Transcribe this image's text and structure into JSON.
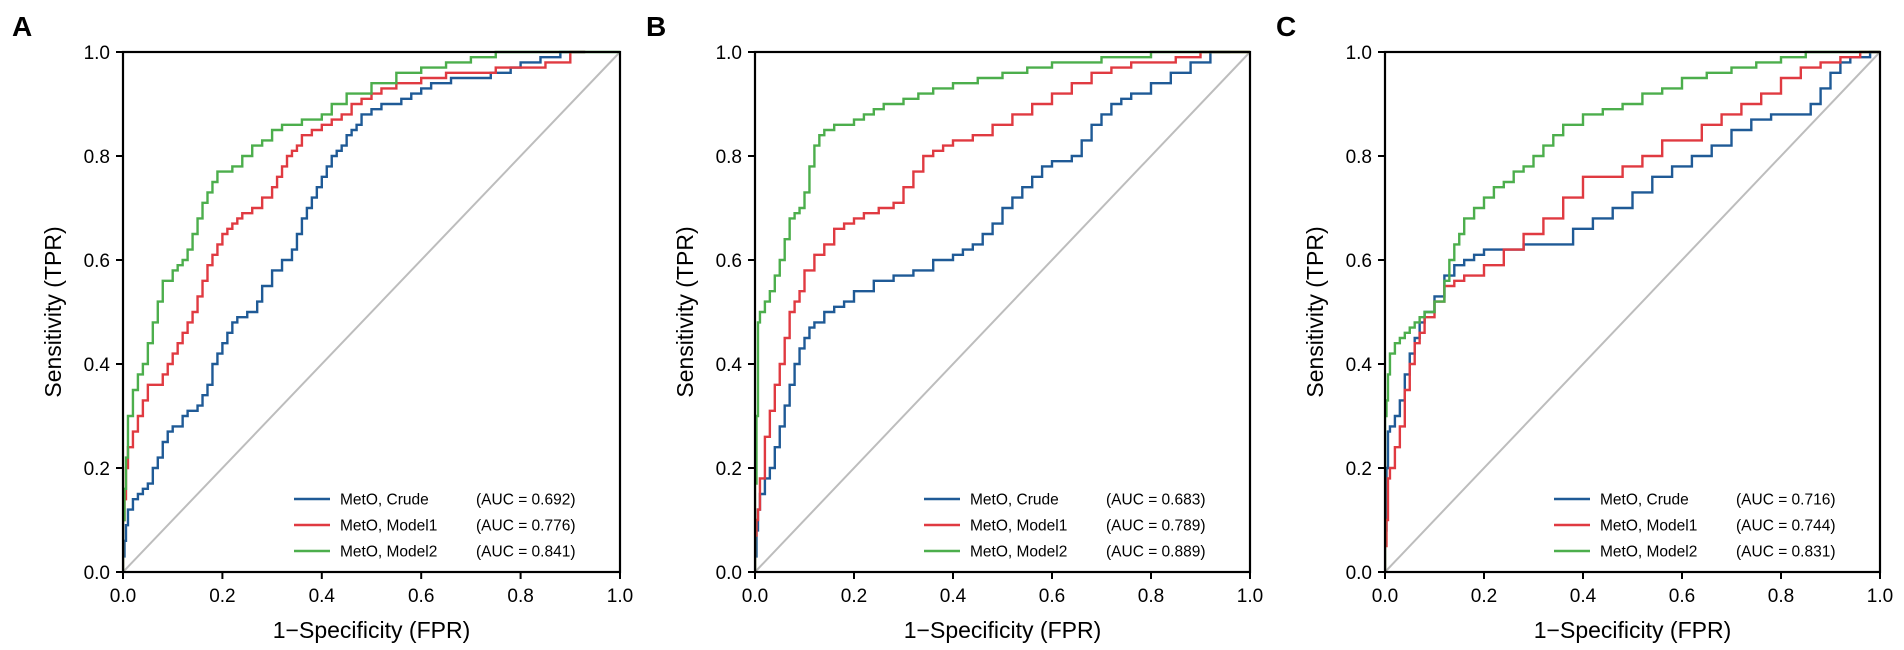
{
  "figure": {
    "panels_count": 3
  },
  "colors": {
    "crude": "#1f5a96",
    "model1": "#e03a41",
    "model2": "#4cae4c",
    "diagonal": "#bdbdbd",
    "axis": "#000000"
  },
  "chart_data": [
    {
      "type": "line",
      "panel": "A",
      "xlabel": "1−Specificity (FPR)",
      "ylabel": "Sensitivity (TPR)",
      "xlim": [
        0,
        1
      ],
      "ylim": [
        0,
        1
      ],
      "xticks": [
        "0.0",
        "0.2",
        "0.4",
        "0.6",
        "0.8",
        "1.0"
      ],
      "yticks": [
        "0.0",
        "0.2",
        "0.4",
        "0.6",
        "0.8",
        "1.0"
      ],
      "legend_position": "bottom-right",
      "diagonal": {
        "x": [
          0,
          1
        ],
        "y": [
          0,
          1
        ]
      },
      "series": [
        {
          "name": "MetO, Crude",
          "auc_label": "(AUC = 0.692)",
          "color_key": "crude",
          "x": [
            0.0,
            0.003,
            0.006,
            0.01,
            0.01,
            0.02,
            0.03,
            0.04,
            0.05,
            0.06,
            0.07,
            0.08,
            0.09,
            0.1,
            0.1,
            0.12,
            0.13,
            0.15,
            0.16,
            0.17,
            0.18,
            0.19,
            0.2,
            0.21,
            0.22,
            0.23,
            0.25,
            0.27,
            0.28,
            0.3,
            0.32,
            0.34,
            0.35,
            0.36,
            0.37,
            0.38,
            0.39,
            0.4,
            0.41,
            0.42,
            0.43,
            0.44,
            0.45,
            0.46,
            0.47,
            0.48,
            0.5,
            0.52,
            0.54,
            0.56,
            0.58,
            0.6,
            0.62,
            0.66,
            0.7,
            0.74,
            0.78,
            0.8,
            0.82,
            0.84,
            0.88,
            0.93
          ],
          "y": [
            0.0,
            0.03,
            0.06,
            0.09,
            0.11,
            0.12,
            0.14,
            0.15,
            0.16,
            0.17,
            0.2,
            0.22,
            0.25,
            0.27,
            0.28,
            0.28,
            0.3,
            0.31,
            0.32,
            0.34,
            0.36,
            0.4,
            0.42,
            0.44,
            0.46,
            0.48,
            0.49,
            0.5,
            0.52,
            0.55,
            0.58,
            0.6,
            0.62,
            0.65,
            0.68,
            0.7,
            0.72,
            0.74,
            0.76,
            0.78,
            0.8,
            0.81,
            0.82,
            0.84,
            0.85,
            0.86,
            0.88,
            0.89,
            0.9,
            0.9,
            0.91,
            0.92,
            0.93,
            0.94,
            0.95,
            0.95,
            0.96,
            0.97,
            0.98,
            0.98,
            0.99,
            1.0
          ]
        },
        {
          "name": "MetO, Model1",
          "auc_label": "(AUC = 0.776)",
          "color_key": "model1",
          "x": [
            0.0,
            0.003,
            0.006,
            0.01,
            0.02,
            0.03,
            0.04,
            0.05,
            0.06,
            0.07,
            0.08,
            0.09,
            0.1,
            0.11,
            0.12,
            0.13,
            0.14,
            0.15,
            0.16,
            0.17,
            0.18,
            0.19,
            0.2,
            0.21,
            0.22,
            0.23,
            0.24,
            0.26,
            0.28,
            0.3,
            0.31,
            0.32,
            0.33,
            0.34,
            0.35,
            0.36,
            0.38,
            0.4,
            0.42,
            0.44,
            0.46,
            0.48,
            0.5,
            0.52,
            0.55,
            0.6,
            0.65,
            0.7,
            0.75,
            0.8,
            0.85,
            0.9,
            0.93
          ],
          "y": [
            0.0,
            0.1,
            0.14,
            0.2,
            0.24,
            0.27,
            0.3,
            0.33,
            0.36,
            0.36,
            0.36,
            0.38,
            0.4,
            0.42,
            0.44,
            0.46,
            0.48,
            0.5,
            0.53,
            0.56,
            0.59,
            0.61,
            0.63,
            0.65,
            0.66,
            0.67,
            0.68,
            0.69,
            0.7,
            0.72,
            0.74,
            0.76,
            0.78,
            0.8,
            0.81,
            0.82,
            0.84,
            0.85,
            0.86,
            0.87,
            0.88,
            0.9,
            0.91,
            0.92,
            0.93,
            0.94,
            0.95,
            0.96,
            0.96,
            0.97,
            0.97,
            0.98,
            1.0
          ]
        },
        {
          "name": "MetO, Model2",
          "auc_label": "(AUC = 0.841)",
          "color_key": "model2",
          "x": [
            0.0,
            0.003,
            0.006,
            0.01,
            0.02,
            0.03,
            0.04,
            0.05,
            0.06,
            0.07,
            0.08,
            0.09,
            0.1,
            0.11,
            0.12,
            0.13,
            0.14,
            0.15,
            0.16,
            0.17,
            0.18,
            0.19,
            0.2,
            0.22,
            0.24,
            0.26,
            0.28,
            0.3,
            0.32,
            0.34,
            0.36,
            0.38,
            0.4,
            0.42,
            0.45,
            0.5,
            0.55,
            0.6,
            0.65,
            0.7,
            0.75,
            0.8,
            0.85,
            0.9,
            1.0
          ],
          "y": [
            0.0,
            0.1,
            0.16,
            0.22,
            0.3,
            0.35,
            0.38,
            0.4,
            0.44,
            0.48,
            0.52,
            0.56,
            0.56,
            0.58,
            0.59,
            0.6,
            0.62,
            0.65,
            0.68,
            0.71,
            0.73,
            0.75,
            0.77,
            0.77,
            0.78,
            0.8,
            0.82,
            0.83,
            0.85,
            0.86,
            0.86,
            0.87,
            0.87,
            0.88,
            0.9,
            0.92,
            0.94,
            0.96,
            0.97,
            0.98,
            0.99,
            1.0,
            1.0,
            1.0,
            1.0
          ]
        }
      ]
    },
    {
      "type": "line",
      "panel": "B",
      "xlabel": "1−Specificity (FPR)",
      "ylabel": "Sensitivity (TPR)",
      "xlim": [
        0,
        1
      ],
      "ylim": [
        0,
        1
      ],
      "xticks": [
        "0.0",
        "0.2",
        "0.4",
        "0.6",
        "0.8",
        "1.0"
      ],
      "yticks": [
        "0.0",
        "0.2",
        "0.4",
        "0.6",
        "0.8",
        "1.0"
      ],
      "legend_position": "bottom-right",
      "diagonal": {
        "x": [
          0,
          1
        ],
        "y": [
          0,
          1
        ]
      },
      "series": [
        {
          "name": "MetO, Crude",
          "auc_label": "(AUC = 0.683)",
          "color_key": "crude",
          "x": [
            0.0,
            0.003,
            0.006,
            0.01,
            0.02,
            0.03,
            0.04,
            0.05,
            0.06,
            0.07,
            0.08,
            0.09,
            0.1,
            0.11,
            0.12,
            0.14,
            0.16,
            0.18,
            0.2,
            0.24,
            0.28,
            0.32,
            0.36,
            0.4,
            0.42,
            0.44,
            0.46,
            0.48,
            0.5,
            0.52,
            0.54,
            0.56,
            0.58,
            0.6,
            0.62,
            0.64,
            0.66,
            0.68,
            0.7,
            0.72,
            0.74,
            0.76,
            0.8,
            0.84,
            0.88,
            0.92,
            0.96
          ],
          "y": [
            0.0,
            0.03,
            0.08,
            0.12,
            0.15,
            0.18,
            0.2,
            0.24,
            0.28,
            0.32,
            0.36,
            0.4,
            0.43,
            0.45,
            0.47,
            0.48,
            0.5,
            0.51,
            0.52,
            0.54,
            0.56,
            0.57,
            0.58,
            0.6,
            0.61,
            0.62,
            0.63,
            0.65,
            0.67,
            0.7,
            0.72,
            0.74,
            0.76,
            0.78,
            0.79,
            0.79,
            0.8,
            0.83,
            0.86,
            0.88,
            0.9,
            0.91,
            0.92,
            0.94,
            0.96,
            0.98,
            1.0
          ]
        },
        {
          "name": "MetO, Model1",
          "auc_label": "(AUC = 0.789)",
          "color_key": "model1",
          "x": [
            0.0,
            0.003,
            0.006,
            0.01,
            0.02,
            0.03,
            0.04,
            0.05,
            0.06,
            0.07,
            0.08,
            0.09,
            0.1,
            0.12,
            0.14,
            0.16,
            0.18,
            0.2,
            0.22,
            0.25,
            0.28,
            0.3,
            0.32,
            0.34,
            0.36,
            0.38,
            0.4,
            0.44,
            0.48,
            0.52,
            0.56,
            0.6,
            0.64,
            0.68,
            0.72,
            0.76,
            0.8,
            0.85,
            0.9,
            0.95,
            1.0
          ],
          "y": [
            0.0,
            0.07,
            0.1,
            0.12,
            0.18,
            0.26,
            0.31,
            0.36,
            0.4,
            0.45,
            0.5,
            0.52,
            0.54,
            0.58,
            0.61,
            0.63,
            0.66,
            0.67,
            0.68,
            0.69,
            0.7,
            0.71,
            0.74,
            0.77,
            0.8,
            0.81,
            0.82,
            0.83,
            0.84,
            0.86,
            0.88,
            0.9,
            0.92,
            0.94,
            0.96,
            0.97,
            0.98,
            0.98,
            0.99,
            1.0,
            1.0
          ]
        },
        {
          "name": "MetO, Model2",
          "auc_label": "(AUC = 0.889)",
          "color_key": "model2",
          "x": [
            0.0,
            0.003,
            0.006,
            0.01,
            0.02,
            0.03,
            0.04,
            0.05,
            0.06,
            0.07,
            0.08,
            0.09,
            0.1,
            0.11,
            0.12,
            0.13,
            0.14,
            0.16,
            0.18,
            0.2,
            0.22,
            0.24,
            0.26,
            0.28,
            0.3,
            0.33,
            0.36,
            0.4,
            0.45,
            0.5,
            0.55,
            0.6,
            0.65,
            0.7,
            0.75,
            0.8,
            0.85,
            0.9,
            1.0
          ],
          "y": [
            0.0,
            0.17,
            0.3,
            0.48,
            0.5,
            0.52,
            0.54,
            0.57,
            0.6,
            0.64,
            0.68,
            0.69,
            0.7,
            0.73,
            0.78,
            0.82,
            0.84,
            0.85,
            0.86,
            0.86,
            0.87,
            0.88,
            0.89,
            0.9,
            0.9,
            0.91,
            0.92,
            0.93,
            0.94,
            0.95,
            0.96,
            0.97,
            0.98,
            0.98,
            0.99,
            0.99,
            1.0,
            1.0,
            1.0
          ]
        }
      ]
    },
    {
      "type": "line",
      "panel": "C",
      "xlabel": "1−Specificity (FPR)",
      "ylabel": "Sensitivity (TPR)",
      "xlim": [
        0,
        1
      ],
      "ylim": [
        0,
        1
      ],
      "xticks": [
        "0.0",
        "0.2",
        "0.4",
        "0.6",
        "0.8",
        "1.0"
      ],
      "yticks": [
        "0.0",
        "0.2",
        "0.4",
        "0.6",
        "0.8",
        "1.0"
      ],
      "legend_position": "bottom-right",
      "diagonal": {
        "x": [
          0,
          1
        ],
        "y": [
          0,
          1
        ]
      },
      "series": [
        {
          "name": "MetO, Crude",
          "auc_label": "(AUC = 0.716)",
          "color_key": "crude",
          "x": [
            0.0,
            0.003,
            0.006,
            0.01,
            0.02,
            0.03,
            0.04,
            0.05,
            0.06,
            0.07,
            0.08,
            0.1,
            0.12,
            0.14,
            0.16,
            0.18,
            0.2,
            0.24,
            0.28,
            0.3,
            0.34,
            0.38,
            0.42,
            0.46,
            0.5,
            0.54,
            0.58,
            0.62,
            0.66,
            0.7,
            0.74,
            0.78,
            0.82,
            0.86,
            0.88,
            0.9,
            0.92,
            0.94,
            0.96,
            0.98,
            1.0
          ],
          "y": [
            0.0,
            0.08,
            0.2,
            0.27,
            0.28,
            0.3,
            0.33,
            0.38,
            0.42,
            0.45,
            0.48,
            0.5,
            0.53,
            0.57,
            0.59,
            0.6,
            0.61,
            0.62,
            0.62,
            0.63,
            0.63,
            0.63,
            0.66,
            0.68,
            0.7,
            0.73,
            0.76,
            0.78,
            0.8,
            0.82,
            0.85,
            0.87,
            0.88,
            0.88,
            0.9,
            0.93,
            0.96,
            0.98,
            0.99,
            0.99,
            1.0
          ]
        },
        {
          "name": "MetO, Model1",
          "auc_label": "(AUC = 0.744)",
          "color_key": "model1",
          "x": [
            0.0,
            0.003,
            0.006,
            0.01,
            0.02,
            0.03,
            0.04,
            0.05,
            0.06,
            0.07,
            0.08,
            0.1,
            0.12,
            0.14,
            0.16,
            0.18,
            0.2,
            0.24,
            0.28,
            0.32,
            0.36,
            0.4,
            0.44,
            0.48,
            0.52,
            0.56,
            0.6,
            0.64,
            0.68,
            0.72,
            0.76,
            0.8,
            0.84,
            0.88,
            0.92,
            0.96,
            1.0
          ],
          "y": [
            0.0,
            0.05,
            0.1,
            0.18,
            0.2,
            0.24,
            0.28,
            0.35,
            0.4,
            0.44,
            0.46,
            0.49,
            0.52,
            0.55,
            0.56,
            0.57,
            0.57,
            0.59,
            0.62,
            0.65,
            0.68,
            0.72,
            0.76,
            0.76,
            0.78,
            0.8,
            0.83,
            0.83,
            0.86,
            0.88,
            0.9,
            0.92,
            0.95,
            0.97,
            0.98,
            0.99,
            1.0
          ]
        },
        {
          "name": "MetO, Model2",
          "auc_label": "(AUC = 0.831)",
          "color_key": "model2",
          "x": [
            0.0,
            0.003,
            0.006,
            0.01,
            0.02,
            0.03,
            0.04,
            0.05,
            0.06,
            0.07,
            0.08,
            0.1,
            0.12,
            0.13,
            0.14,
            0.15,
            0.16,
            0.18,
            0.2,
            0.22,
            0.24,
            0.26,
            0.28,
            0.3,
            0.32,
            0.34,
            0.36,
            0.4,
            0.44,
            0.48,
            0.52,
            0.56,
            0.6,
            0.65,
            0.7,
            0.75,
            0.8,
            0.85,
            0.9,
            1.0
          ],
          "y": [
            0.0,
            0.3,
            0.33,
            0.38,
            0.42,
            0.44,
            0.45,
            0.46,
            0.47,
            0.48,
            0.49,
            0.5,
            0.52,
            0.56,
            0.6,
            0.63,
            0.65,
            0.68,
            0.7,
            0.72,
            0.74,
            0.75,
            0.77,
            0.78,
            0.8,
            0.82,
            0.84,
            0.86,
            0.88,
            0.89,
            0.9,
            0.92,
            0.93,
            0.95,
            0.96,
            0.97,
            0.98,
            0.99,
            1.0,
            1.0
          ]
        }
      ]
    }
  ],
  "panel_labels": [
    "A",
    "B",
    "C"
  ]
}
